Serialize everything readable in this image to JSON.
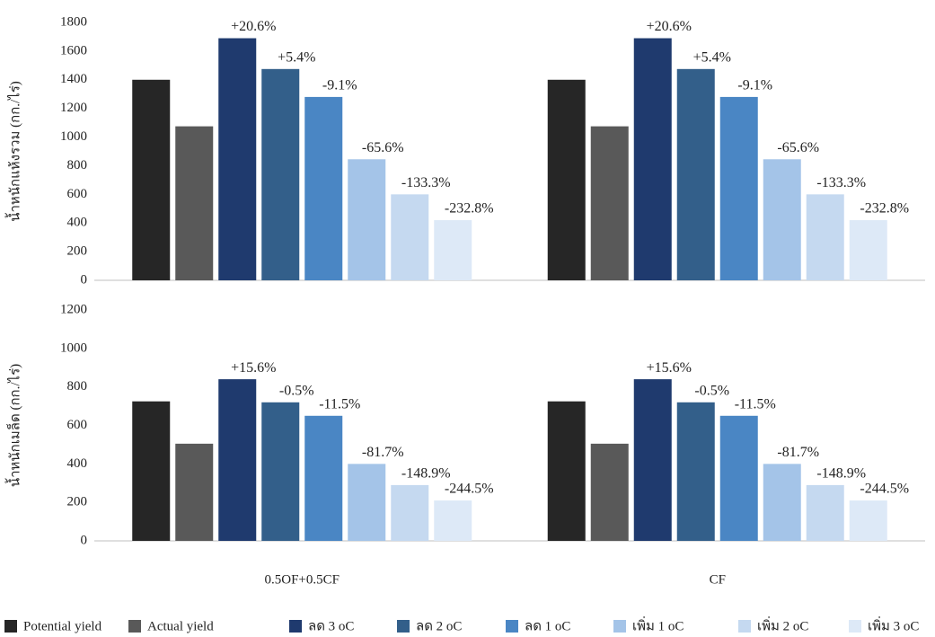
{
  "chart_data": [
    {
      "type": "bar",
      "ylabel": "น้ำหนักแห้งรวม (กก./ไร่)",
      "categories": [
        null,
        null
      ],
      "ylim": [
        0,
        1800
      ],
      "yticks": [
        0,
        200,
        400,
        600,
        800,
        1000,
        1200,
        1400,
        1600,
        1800
      ],
      "series": [
        {
          "color": "#262626",
          "values": [
            1400,
            1400
          ]
        },
        {
          "color": "#595959",
          "values": [
            1075,
            1075
          ]
        },
        {
          "color": "#1f3a6e",
          "values": [
            1690,
            1690
          ],
          "labels": [
            "+20.6%",
            "+20.6%"
          ]
        },
        {
          "color": "#335f8a",
          "values": [
            1475,
            1475
          ],
          "labels": [
            "+5.4%",
            "+5.4%"
          ]
        },
        {
          "color": "#4a86c4",
          "values": [
            1280,
            1280
          ],
          "labels": [
            "-9.1%",
            "-9.1%"
          ]
        },
        {
          "color": "#a4c4e8",
          "values": [
            845,
            845
          ],
          "labels": [
            "-65.6%",
            "-65.6%"
          ]
        },
        {
          "color": "#c5d9f0",
          "values": [
            600,
            600
          ],
          "labels": [
            "-133.3%",
            "-133.3%"
          ]
        },
        {
          "color": "#dde9f7",
          "values": [
            420,
            420
          ],
          "labels": [
            "-232.8%",
            "-232.8%"
          ]
        }
      ]
    },
    {
      "type": "bar",
      "ylabel": "น้ำหนักเมล็ด (กก./ไร่)",
      "categories": [
        "0.5OF+0.5CF",
        "CF"
      ],
      "ylim": [
        0,
        1200
      ],
      "yticks": [
        0,
        200,
        400,
        600,
        800,
        1000,
        1200
      ],
      "series": [
        {
          "name": "Potential yield",
          "color": "#262626",
          "values": [
            725,
            725
          ]
        },
        {
          "name": "Actual yield",
          "color": "#595959",
          "values": [
            505,
            505
          ]
        },
        {
          "name": "ลด 3 oC",
          "color": "#1f3a6e",
          "values": [
            840,
            840
          ],
          "labels": [
            "+15.6%",
            "+15.6%"
          ]
        },
        {
          "name": "ลด 2 oC",
          "color": "#335f8a",
          "values": [
            720,
            720
          ],
          "labels": [
            "-0.5%",
            "-0.5%"
          ]
        },
        {
          "name": "ลด 1 oC",
          "color": "#4a86c4",
          "values": [
            650,
            650
          ],
          "labels": [
            "-11.5%",
            "-11.5%"
          ]
        },
        {
          "name": "เพิ่ม 1 oC",
          "color": "#a4c4e8",
          "values": [
            400,
            400
          ],
          "labels": [
            "-81.7%",
            "-81.7%"
          ]
        },
        {
          "name": "เพิ่ม 2 oC",
          "color": "#c5d9f0",
          "values": [
            290,
            290
          ],
          "labels": [
            "-148.9%",
            "-148.9%"
          ]
        },
        {
          "name": "เพิ่ม 3 oC",
          "color": "#dde9f7",
          "values": [
            210,
            210
          ],
          "labels": [
            "-244.5%",
            "-244.5%"
          ]
        }
      ]
    }
  ]
}
